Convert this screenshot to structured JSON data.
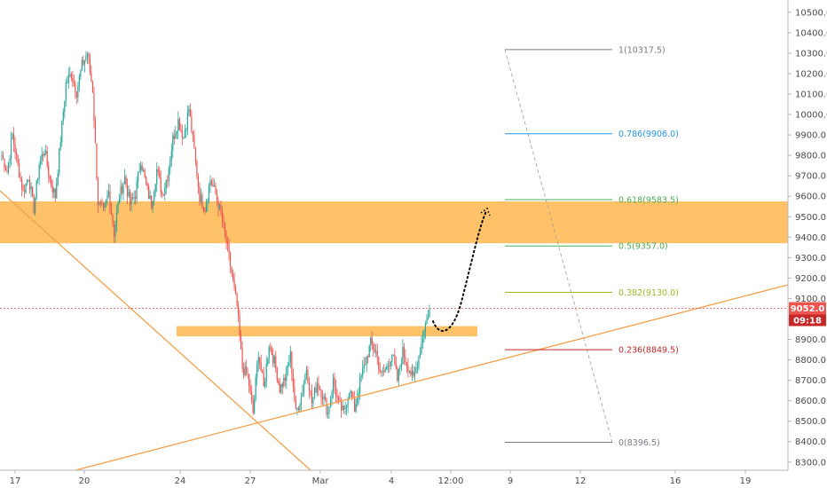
{
  "chart_data": {
    "type": "candlestick",
    "title": "",
    "xlabel": "",
    "ylabel": "",
    "ylim": [
      8260,
      10560
    ],
    "y_ticks": [
      8300,
      8400,
      8500,
      8600,
      8700,
      8800,
      8900,
      9000,
      9100,
      9200,
      9300,
      9400,
      9500,
      9600,
      9700,
      9800,
      9900,
      10000,
      10100,
      10200,
      10300,
      10400,
      10500
    ],
    "x_ticks": [
      "17",
      "20",
      "24",
      "27",
      "Mar",
      "4",
      "12:00",
      "9",
      "12",
      "16",
      "19"
    ],
    "last_price": "9052.0",
    "countdown": "09:18",
    "candle_color_up": "#26a69a",
    "candle_color_down": "#ef5350",
    "zone_color": "#ffb74d",
    "resistance_zone": [
      9370,
      9575
    ],
    "support_zone": [
      8915,
      8965
    ],
    "close_path": [
      9800,
      9720,
      9900,
      9750,
      9620,
      9700,
      9540,
      9760,
      9830,
      9680,
      9600,
      9880,
      10150,
      10200,
      10110,
      10240,
      10300,
      10120,
      9570,
      9520,
      9620,
      9420,
      9600,
      9690,
      9560,
      9610,
      9780,
      9650,
      9560,
      9730,
      9610,
      9700,
      9880,
      9970,
      9890,
      10030,
      9820,
      9600,
      9540,
      9680,
      9610,
      9510,
      9380,
      9220,
      9060,
      8760,
      8720,
      8540,
      8840,
      8660,
      8880,
      8790,
      8660,
      8710,
      8820,
      8540,
      8620,
      8760,
      8590,
      8690,
      8630,
      8540,
      8700,
      8580,
      8540,
      8660,
      8560,
      8690,
      8790,
      8880,
      8840,
      8720,
      8760,
      8830,
      8700,
      8840,
      8770,
      8700,
      8820,
      8950,
      9050
    ],
    "fibonacci": [
      {
        "level": "1",
        "price": 10317.5,
        "label": "1(10317.5)",
        "color": "#787b86"
      },
      {
        "level": "0.786",
        "price": 9906.0,
        "label": "0.786(9906.0)",
        "color": "#2196f3"
      },
      {
        "level": "0.618",
        "price": 9583.5,
        "label": "0.618(9583.5)",
        "color": "#4caf50"
      },
      {
        "level": "0.5",
        "price": 9357.0,
        "label": "0.5(9357.0)",
        "color": "#4caf50"
      },
      {
        "level": "0.382",
        "price": 9130.0,
        "label": "0.382(9130.0)",
        "color": "#9bbb27"
      },
      {
        "level": "0.236",
        "price": 8849.5,
        "label": "0.236(8849.5)",
        "color": "#c62828"
      },
      {
        "level": "0",
        "price": 8396.5,
        "label": "0(8396.5)",
        "color": "#787b86"
      }
    ],
    "colors": {
      "trendline": "#f5a04a",
      "fib_diagonal": "#9e9e9e",
      "last_price_line": "#ef5350",
      "last_price_tag": "#ef5350",
      "countdown_tag": "#c62828",
      "projection": "#000000"
    }
  }
}
